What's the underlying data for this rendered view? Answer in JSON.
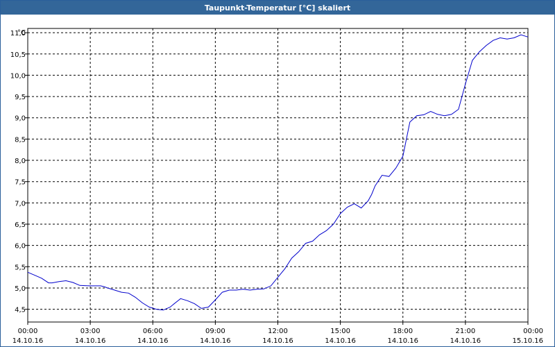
{
  "chart_data": {
    "type": "line",
    "title": "Taupunkt-Temperatur [°C] skaliert",
    "ylabel": "°C",
    "ylim": [
      4.2,
      11.1
    ],
    "xlim": [
      "14.10.16 00:00",
      "15.10.16 00:00"
    ],
    "grid": true,
    "y_ticks": [
      "4,5",
      "5,0",
      "5,5",
      "6,0",
      "6,5",
      "7,0",
      "7,5",
      "8,0",
      "8,5",
      "9,0",
      "9,5",
      "10,0",
      "10,5",
      "11,0"
    ],
    "x_ticks": [
      {
        "time": "00:00",
        "date": "14.10.16"
      },
      {
        "time": "03:00",
        "date": "14.10.16"
      },
      {
        "time": "06:00",
        "date": "14.10.16"
      },
      {
        "time": "09:00",
        "date": "14.10.16"
      },
      {
        "time": "12:00",
        "date": "14.10.16"
      },
      {
        "time": "15:00",
        "date": "14.10.16"
      },
      {
        "time": "18:00",
        "date": "14.10.16"
      },
      {
        "time": "21:00",
        "date": "14.10.16"
      },
      {
        "time": "00:00",
        "date": "15.10.16"
      }
    ],
    "series": [
      {
        "color": "#0000cc",
        "x": [
          "00:00",
          "00:20",
          "00:40",
          "01:00",
          "01:10",
          "01:30",
          "01:50",
          "02:10",
          "02:30",
          "03:00",
          "03:20",
          "03:30",
          "03:40",
          "03:50",
          "04:10",
          "04:30",
          "04:50",
          "05:10",
          "05:30",
          "05:50",
          "06:10",
          "06:30",
          "06:50",
          "07:00",
          "07:20",
          "07:40",
          "08:00",
          "08:20",
          "08:40",
          "09:00",
          "09:20",
          "09:40",
          "10:00",
          "10:20",
          "10:40",
          "11:00",
          "11:20",
          "11:40",
          "12:00",
          "12:20",
          "12:40",
          "13:00",
          "13:20",
          "13:40",
          "14:00",
          "14:10",
          "14:20",
          "14:40",
          "15:00",
          "15:20",
          "15:40",
          "16:00",
          "16:20",
          "16:30",
          "16:40",
          "17:00",
          "17:20",
          "17:40",
          "18:00",
          "18:10",
          "18:20",
          "18:40",
          "19:00",
          "19:20",
          "19:40",
          "20:00",
          "20:20",
          "20:40",
          "21:00",
          "21:20",
          "21:40",
          "22:00",
          "22:20",
          "22:40",
          "23:00",
          "23:20",
          "23:40",
          "00:00"
        ],
        "y": [
          5.37,
          5.3,
          5.23,
          5.12,
          5.12,
          5.15,
          5.17,
          5.13,
          5.06,
          5.05,
          5.05,
          5.05,
          5.03,
          5.0,
          4.95,
          4.9,
          4.88,
          4.78,
          4.65,
          4.55,
          4.5,
          4.48,
          4.55,
          4.62,
          4.75,
          4.7,
          4.63,
          4.52,
          4.55,
          4.72,
          4.9,
          4.95,
          4.95,
          4.97,
          4.95,
          4.97,
          4.98,
          5.05,
          5.25,
          5.45,
          5.7,
          5.85,
          6.05,
          6.1,
          6.25,
          6.3,
          6.35,
          6.5,
          6.75,
          6.9,
          6.98,
          6.88,
          7.05,
          7.2,
          7.4,
          7.65,
          7.62,
          7.82,
          8.1,
          8.5,
          8.9,
          9.05,
          9.07,
          9.15,
          9.08,
          9.05,
          9.08,
          9.2,
          9.8,
          10.35,
          10.55,
          10.7,
          10.82,
          10.88,
          10.85,
          10.88,
          10.95,
          10.9
        ]
      }
    ]
  }
}
